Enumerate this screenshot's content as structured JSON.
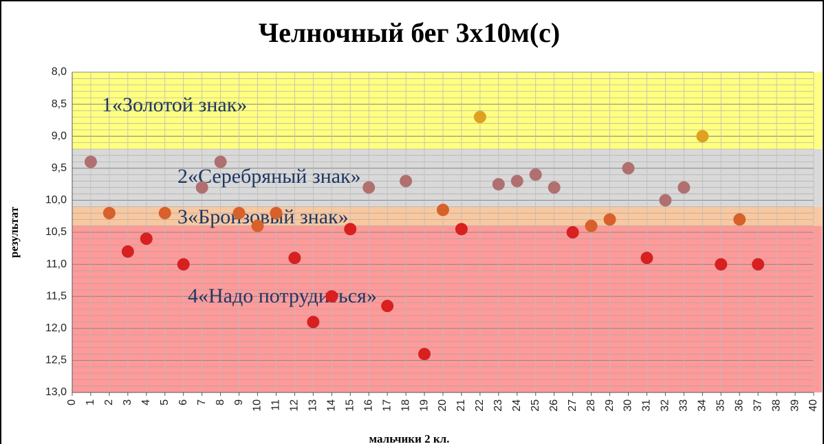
{
  "chart_data": {
    "type": "scatter",
    "title": "Челночный бег 3х10м(с)",
    "xlabel": "мальчики 2 кл.",
    "ylabel": "результат",
    "x": [
      1,
      2,
      3,
      4,
      5,
      6,
      7,
      8,
      9,
      10,
      11,
      12,
      13,
      14,
      15,
      16,
      17,
      18,
      19,
      20,
      21,
      22,
      23,
      24,
      25,
      26,
      27,
      28,
      29,
      30,
      31,
      32,
      33,
      34,
      35,
      36,
      37
    ],
    "values": [
      9.4,
      10.2,
      10.8,
      10.6,
      10.2,
      11.0,
      9.8,
      9.4,
      10.2,
      10.4,
      10.2,
      10.9,
      11.9,
      11.5,
      10.45,
      9.8,
      11.65,
      9.7,
      12.4,
      10.15,
      10.45,
      8.7,
      9.75,
      9.7,
      9.6,
      9.8,
      10.5,
      10.4,
      10.3,
      9.5,
      10.9,
      10.0,
      9.8,
      9.0,
      11.0,
      10.3,
      11.0
    ],
    "xlim": [
      0,
      40
    ],
    "xticks": [
      0,
      1,
      2,
      3,
      4,
      5,
      6,
      7,
      8,
      9,
      10,
      11,
      12,
      13,
      14,
      15,
      16,
      17,
      18,
      19,
      20,
      21,
      22,
      23,
      24,
      25,
      26,
      27,
      28,
      29,
      30,
      31,
      32,
      33,
      34,
      35,
      36,
      37,
      38,
      39,
      40
    ],
    "ylim": [
      8,
      13
    ],
    "y_inverted": true,
    "yticks": [
      {
        "value": 8,
        "label": "8,0"
      },
      {
        "value": 8.5,
        "label": "8,5"
      },
      {
        "value": 9,
        "label": "9,0"
      },
      {
        "value": 9.5,
        "label": "9,5"
      },
      {
        "value": 10,
        "label": "10,0"
      },
      {
        "value": 10.5,
        "label": "10,5"
      },
      {
        "value": 11,
        "label": "11,0"
      },
      {
        "value": 11.5,
        "label": "11,5"
      },
      {
        "value": 12,
        "label": "12,0"
      },
      {
        "value": 12.5,
        "label": "12,5"
      },
      {
        "value": 13,
        "label": "13,0"
      }
    ],
    "minor_grid_step": 0.1,
    "grid": true,
    "bands": [
      {
        "from": 8,
        "to": 9.2,
        "color": "#ffff80",
        "point_color": "#e0a020",
        "label": "1«Золотой знак»"
      },
      {
        "from": 9.2,
        "to": 10.1,
        "color": "#d9d9d9",
        "point_color": "#b07070",
        "label": "2«Серебряный знак»"
      },
      {
        "from": 10.1,
        "to": 10.4,
        "color": "#f8c8a0",
        "point_color": "#d8602a",
        "label": "3«Бронзовый знак»"
      },
      {
        "from": 10.4,
        "to": 13,
        "color": "#ff9a9a",
        "point_color": "#d82020",
        "label": "4«Надо потрудиться»"
      }
    ]
  }
}
